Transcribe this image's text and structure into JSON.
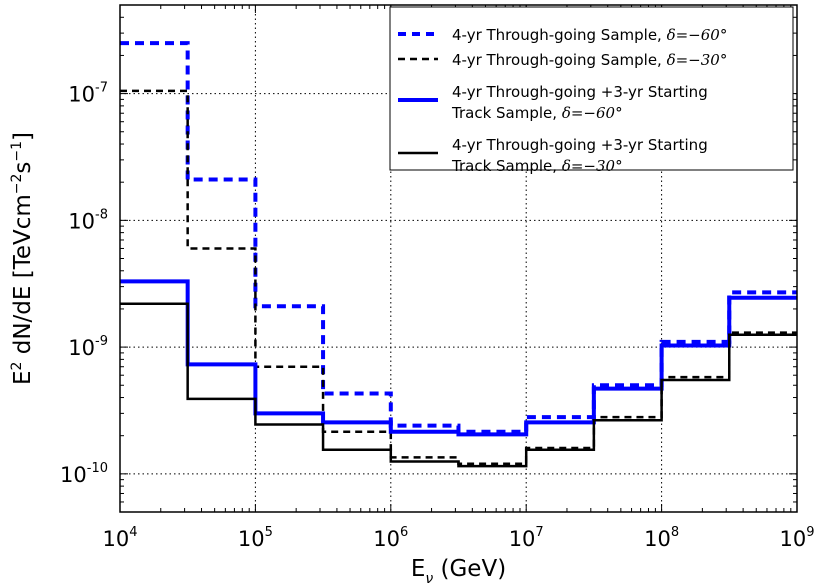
{
  "chart_data": {
    "type": "line",
    "step": true,
    "xscale": "log",
    "yscale": "log",
    "xlim": [
      10000,
      1000000000
    ],
    "ylim": [
      5e-11,
      5e-07
    ],
    "grid": true,
    "legend_position": "upper right",
    "xlabel": {
      "main": "E",
      "sub": "ν",
      "unit": " (GeV)"
    },
    "ylabel": {
      "a": "E",
      "a_sup": "2",
      "b": " dN/dE [TeVcm",
      "b_sup": "−2",
      "c": "s",
      "c_sup": "−1",
      "d": "]"
    },
    "x_ticks": [
      {
        "base": "10",
        "exp": "4",
        "value": 10000
      },
      {
        "base": "10",
        "exp": "5",
        "value": 100000
      },
      {
        "base": "10",
        "exp": "6",
        "value": 1000000
      },
      {
        "base": "10",
        "exp": "7",
        "value": 10000000
      },
      {
        "base": "10",
        "exp": "8",
        "value": 100000000
      },
      {
        "base": "10",
        "exp": "9",
        "value": 1000000000
      }
    ],
    "y_ticks": [
      {
        "base": "10",
        "exp": "-10",
        "value": 1e-10
      },
      {
        "base": "10",
        "exp": "-9",
        "value": 1e-09
      },
      {
        "base": "10",
        "exp": "-8",
        "value": 1e-08
      },
      {
        "base": "10",
        "exp": "-7",
        "value": 1e-07
      }
    ],
    "bin_edges": [
      10000,
      31600,
      100000,
      316000,
      1000000,
      3160000,
      10000000,
      31600000,
      100000000,
      316000000,
      1000000000
    ],
    "series": [
      {
        "name": "4-yr Through-going Sample, δ=−60°",
        "label_text": "4-yr Through-going Sample, ",
        "label_math": "δ=−60°",
        "color": "#0000ff",
        "linestyle": "dashed",
        "width": 4,
        "values": [
          2.5e-07,
          2.1e-08,
          2.1e-09,
          4.3e-10,
          2.4e-10,
          2.15e-10,
          2.8e-10,
          5e-10,
          1.1e-09,
          2.7e-09
        ]
      },
      {
        "name": "4-yr Through-going Sample, δ=−30°",
        "label_text": "4-yr Through-going Sample, ",
        "label_math": "δ=−30°",
        "color": "#000000",
        "linestyle": "dashed",
        "width": 2.5,
        "values": [
          1.05e-07,
          6e-09,
          7e-10,
          2.15e-10,
          1.35e-10,
          1.2e-10,
          1.6e-10,
          2.8e-10,
          5.8e-10,
          1.3e-09
        ]
      },
      {
        "name": "4-yr Through-going +3-yr Starting Track Sample, δ=−60°",
        "label_text": "4-yr Through-going +3-yr Starting",
        "label_text2": "Track Sample, ",
        "label_math": "δ=−60°",
        "color": "#0000ff",
        "linestyle": "solid",
        "width": 4,
        "values": [
          3.3e-09,
          7.3e-10,
          3e-10,
          2.55e-10,
          2.15e-10,
          2.05e-10,
          2.55e-10,
          4.7e-10,
          1.03e-09,
          2.45e-09
        ]
      },
      {
        "name": "4-yr Through-going +3-yr Starting Track Sample, δ=−30°",
        "label_text": "4-yr Through-going +3-yr Starting",
        "label_text2": "Track Sample, ",
        "label_math": "δ=−30°",
        "color": "#000000",
        "linestyle": "solid",
        "width": 2.5,
        "values": [
          2.2e-09,
          3.9e-10,
          2.45e-10,
          1.55e-10,
          1.25e-10,
          1.15e-10,
          1.55e-10,
          2.65e-10,
          5.5e-10,
          1.25e-09
        ]
      }
    ]
  }
}
